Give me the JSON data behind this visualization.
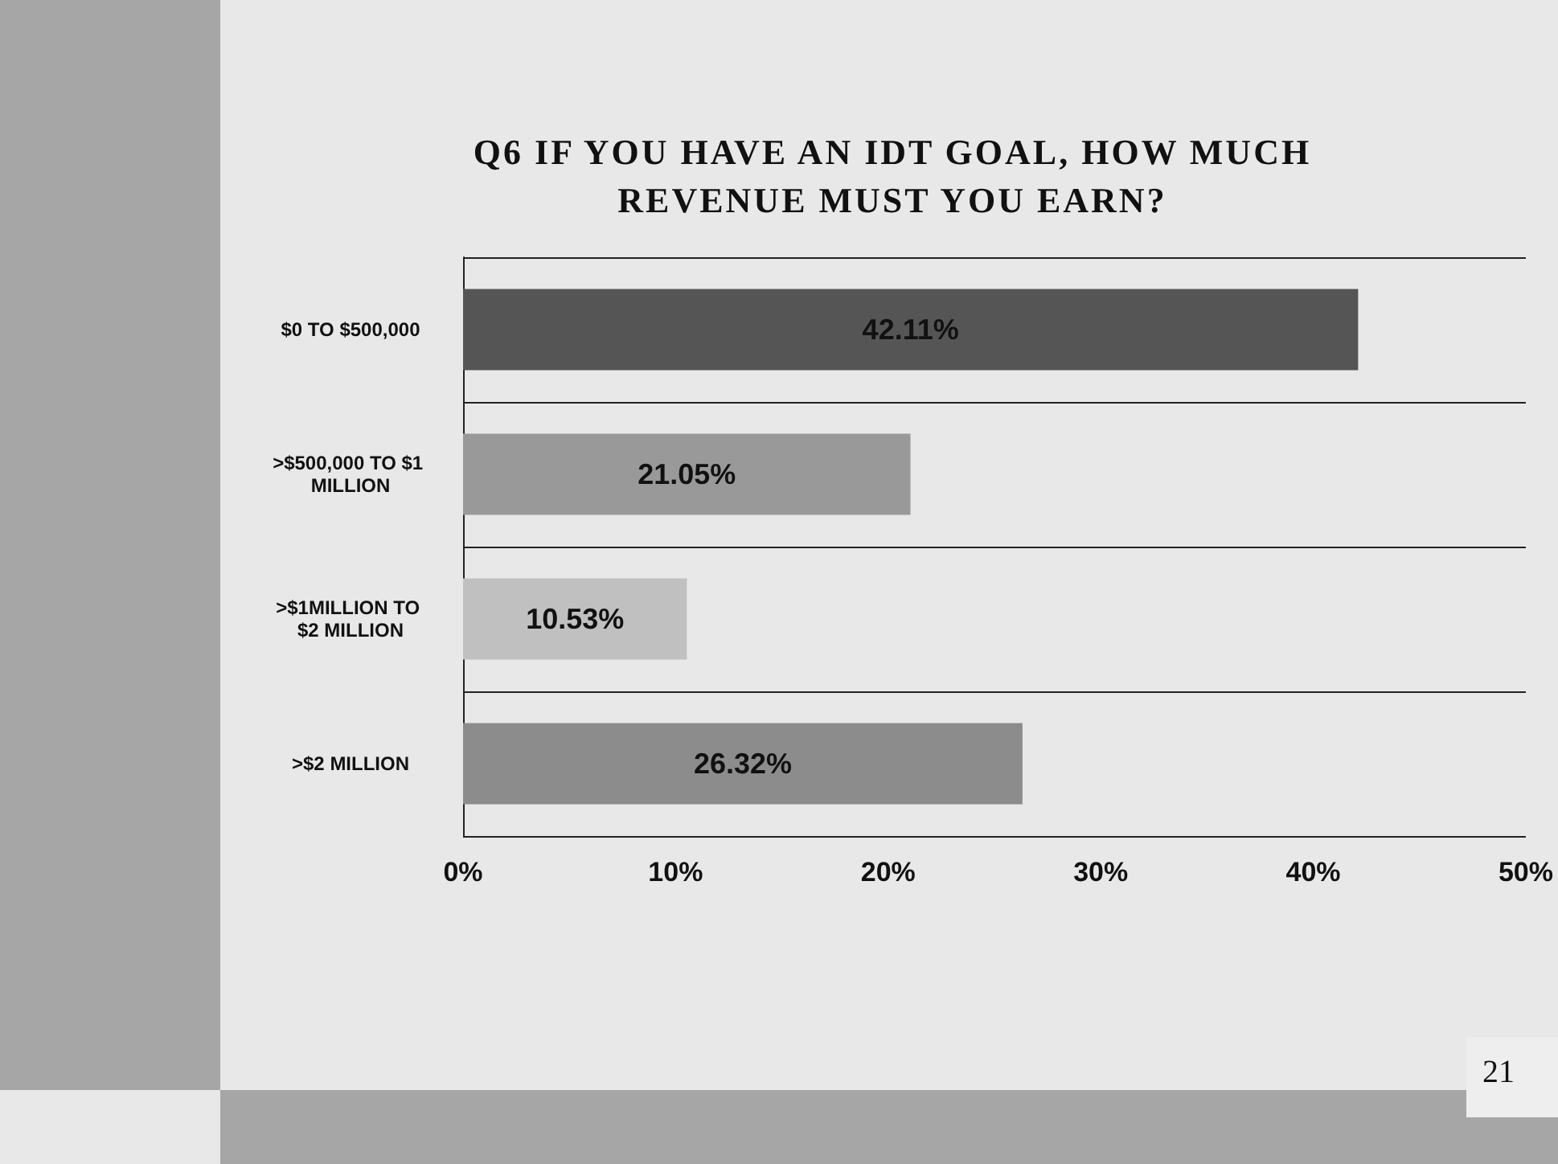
{
  "chart_data": {
    "type": "bar",
    "orientation": "horizontal",
    "title": "Q6 IF YOU HAVE AN IDT GOAL, HOW MUCH REVENUE MUST YOU EARN?",
    "categories": [
      "$0 TO $500,000",
      ">$500,000 TO $1 MILLION",
      ">$1MILLION TO $2 MILLION",
      ">$2 MILLION"
    ],
    "values": [
      42.11,
      21.05,
      10.53,
      26.32
    ],
    "colors": [
      "#555555",
      "#999999",
      "#c0c0c0",
      "#8c8c8c"
    ],
    "value_labels": [
      "42.11%",
      "21.05%",
      "10.53%",
      "26.32%"
    ],
    "xlim": [
      0,
      50
    ],
    "xticks": [
      {
        "value": 0,
        "label": "0%"
      },
      {
        "value": 10,
        "label": "10%"
      },
      {
        "value": 20,
        "label": "20%"
      },
      {
        "value": 30,
        "label": "30%"
      },
      {
        "value": 40,
        "label": "40%"
      },
      {
        "value": 50,
        "label": "50%"
      }
    ],
    "grid": "y",
    "annotations": [
      "21"
    ]
  }
}
